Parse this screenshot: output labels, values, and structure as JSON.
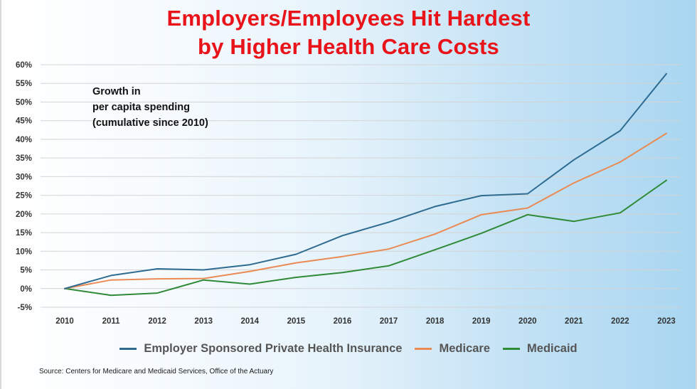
{
  "chart_data": {
    "type": "line",
    "title_lines": [
      "Employers/Employees Hit Hardest",
      "by Higher Health Care Costs"
    ],
    "annotation_lines": [
      "Growth in",
      "per capita spending",
      "(cumulative since 2010)"
    ],
    "x": [
      "2010",
      "2011",
      "2012",
      "2013",
      "2014",
      "2015",
      "2016",
      "2017",
      "2018",
      "2019",
      "2020",
      "2021",
      "2022",
      "2023"
    ],
    "y_ticks": [
      -5,
      0,
      5,
      10,
      15,
      20,
      25,
      30,
      35,
      40,
      45,
      50,
      55,
      60
    ],
    "y_tick_labels": [
      "-5%",
      "0%",
      "5%",
      "10%",
      "15%",
      "20%",
      "25%",
      "30%",
      "35%",
      "40%",
      "45%",
      "50%",
      "55%",
      "60%"
    ],
    "ylim": [
      -5,
      60
    ],
    "grid": true,
    "series": [
      {
        "name": "Employer Sponsored Private Health Insurance",
        "color": "#2e6b90",
        "values": [
          0,
          3.5,
          5.3,
          5.0,
          6.4,
          9.2,
          14.2,
          17.8,
          22.0,
          24.9,
          25.4,
          34.5,
          42.3,
          57.6
        ]
      },
      {
        "name": "Medicare",
        "color": "#ea8a54",
        "values": [
          0,
          2.3,
          2.6,
          2.7,
          4.6,
          6.9,
          8.6,
          10.6,
          14.6,
          19.8,
          21.6,
          28.3,
          33.9,
          41.6
        ]
      },
      {
        "name": "Medicaid",
        "color": "#2f8a37",
        "values": [
          0,
          -1.8,
          -1.2,
          2.3,
          1.2,
          3.0,
          4.3,
          6.1,
          10.4,
          14.8,
          19.8,
          18.0,
          20.3,
          29.0
        ]
      }
    ],
    "legend_position": "bottom-center",
    "source": "Source: Centers for Medicare and Medicaid Services, Office of the Actuary"
  }
}
